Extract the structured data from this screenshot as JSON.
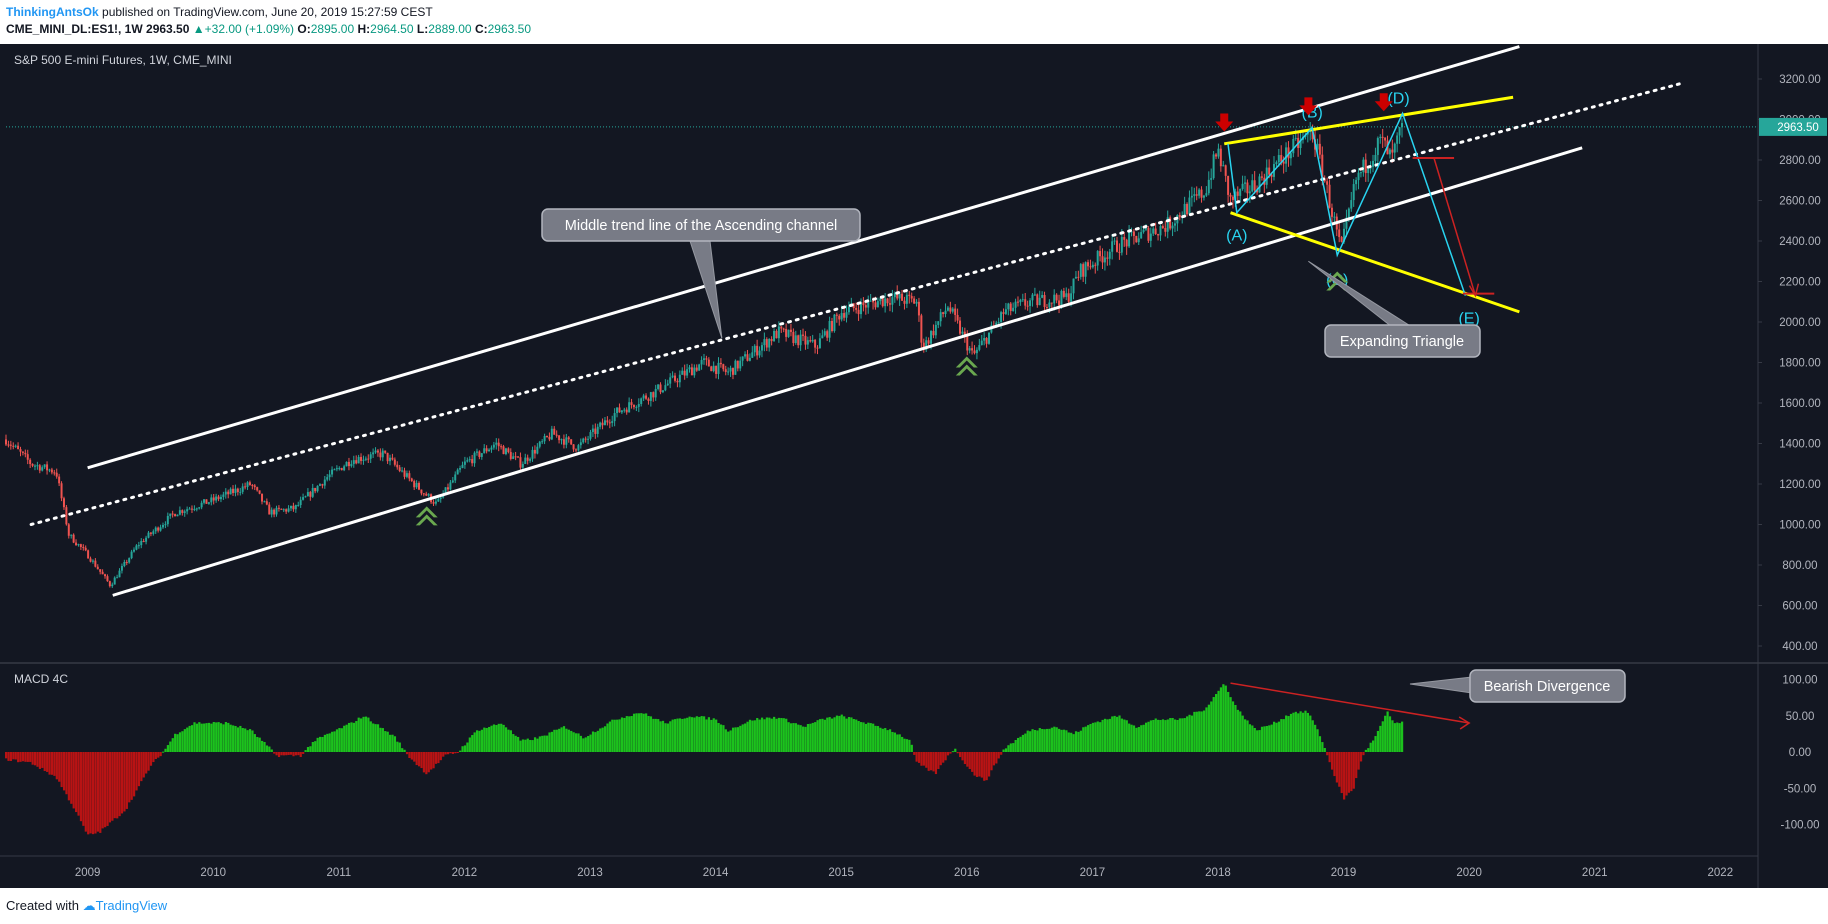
{
  "header": {
    "author": "ThinkingAntsOk",
    "published": "published on TradingView.com, June 20, 2019 15:27:59 CEST",
    "symbol": "CME_MINI_DL:ES1!, 1W",
    "last": "2963.50",
    "change": "+32.00 (+1.09%)",
    "o_label": "O:",
    "o": "2895.00",
    "h_label": "H:",
    "h": "2964.50",
    "l_label": "L:",
    "l": "2889.00",
    "c_label": "C:",
    "c": "2963.50"
  },
  "footer": {
    "created": "Created with",
    "brand": "TradingView"
  },
  "colors": {
    "background": "#131722",
    "up": "#26a69a",
    "down": "#ef5350",
    "channel": "#ffffff",
    "triangle": "#ffff00",
    "wave": "#29d4f0",
    "macd_up": "#1dd11d",
    "macd_down": "#c81414",
    "arrow_up": "#6aa84f",
    "arrow_down": "#cc0000",
    "price_tag": "#26a69a"
  },
  "chart_data": [
    {
      "type": "candlestick",
      "title": "S&P 500 E-mini Futures, 1W, CME_MINI",
      "ylim": [
        300,
        3350
      ],
      "yticks": [
        400,
        600,
        800,
        1000,
        1200,
        1400,
        1600,
        1800,
        2000,
        2200,
        2400,
        2600,
        2800,
        3000,
        3200
      ],
      "ytick_labels": [
        "400.00",
        "600.00",
        "800.00",
        "1000.00",
        "1200.00",
        "1400.00",
        "1600.00",
        "1800.00",
        "2000.00",
        "2200.00",
        "2400.00",
        "2600.00",
        "2800.00",
        "3000.00",
        "3200.00"
      ],
      "xticks": [
        "2009",
        "2010",
        "2011",
        "2012",
        "2013",
        "2014",
        "2015",
        "2016",
        "2017",
        "2018",
        "2019",
        "2020",
        "2021",
        "2022"
      ],
      "xlim": [
        2008.35,
        2022.3
      ],
      "last_price": 2963.5,
      "last_price_label": "2963.50",
      "price_path": [
        [
          2008.35,
          1420
        ],
        [
          2008.55,
          1300
        ],
        [
          2008.75,
          1260
        ],
        [
          2008.85,
          950
        ],
        [
          2009.0,
          850
        ],
        [
          2009.18,
          700
        ],
        [
          2009.4,
          900
        ],
        [
          2009.7,
          1060
        ],
        [
          2010.0,
          1120
        ],
        [
          2010.3,
          1200
        ],
        [
          2010.45,
          1060
        ],
        [
          2010.65,
          1080
        ],
        [
          2010.9,
          1230
        ],
        [
          2011.1,
          1320
        ],
        [
          2011.35,
          1350
        ],
        [
          2011.6,
          1200
        ],
        [
          2011.78,
          1100
        ],
        [
          2012.0,
          1300
        ],
        [
          2012.25,
          1400
        ],
        [
          2012.45,
          1300
        ],
        [
          2012.7,
          1450
        ],
        [
          2012.9,
          1380
        ],
        [
          2013.2,
          1550
        ],
        [
          2013.5,
          1650
        ],
        [
          2013.9,
          1800
        ],
        [
          2014.1,
          1750
        ],
        [
          2014.5,
          1950
        ],
        [
          2014.8,
          1880
        ],
        [
          2015.0,
          2050
        ],
        [
          2015.4,
          2120
        ],
        [
          2015.6,
          2100
        ],
        [
          2015.65,
          1870
        ],
        [
          2015.85,
          2080
        ],
        [
          2016.05,
          1830
        ],
        [
          2016.3,
          2050
        ],
        [
          2016.5,
          2100
        ],
        [
          2016.8,
          2120
        ],
        [
          2016.9,
          2250
        ],
        [
          2017.2,
          2380
        ],
        [
          2017.6,
          2480
        ],
        [
          2017.9,
          2650
        ],
        [
          2018.0,
          2850
        ],
        [
          2018.1,
          2600
        ],
        [
          2018.3,
          2680
        ],
        [
          2018.5,
          2800
        ],
        [
          2018.75,
          2940
        ],
        [
          2018.85,
          2700
        ],
        [
          2018.98,
          2350
        ],
        [
          2019.1,
          2700
        ],
        [
          2019.3,
          2900
        ],
        [
          2019.38,
          2800
        ],
        [
          2019.47,
          2963
        ]
      ],
      "channel": {
        "upper": [
          [
            2009.0,
            1280
          ],
          [
            2020.4,
            3360
          ]
        ],
        "middle": [
          [
            2008.55,
            1000
          ],
          [
            2021.7,
            3180
          ]
        ],
        "lower": [
          [
            2009.2,
            650
          ],
          [
            2020.9,
            2860
          ]
        ]
      },
      "triangle": {
        "top": [
          [
            2018.05,
            2880
          ],
          [
            2020.35,
            3110
          ]
        ],
        "bottom": [
          [
            2018.1,
            2540
          ],
          [
            2020.4,
            2050
          ]
        ]
      },
      "waves": {
        "labels": [
          "(A)",
          "(B)",
          "(C)",
          "(D)",
          "(E)"
        ],
        "points": [
          [
            2018.08,
            2880
          ],
          [
            2018.15,
            2540
          ],
          [
            2018.75,
            2960
          ],
          [
            2018.95,
            2330
          ],
          [
            2019.47,
            3030
          ],
          [
            2019.97,
            2130
          ]
        ]
      },
      "red_arrows_down": [
        [
          2018.05,
          2980
        ],
        [
          2018.72,
          3060
        ],
        [
          2019.32,
          3080
        ]
      ],
      "green_arrows_up": [
        [
          2011.7,
          1040
        ],
        [
          2016.0,
          1780
        ],
        [
          2018.95,
          2200
        ]
      ],
      "target": {
        "t_bar": [
          [
            2019.55,
            2810
          ],
          [
            2019.88,
            2810
          ]
        ],
        "arrow": [
          [
            2019.72,
            2810
          ],
          [
            2020.05,
            2130
          ]
        ],
        "e_bar": [
          [
            2019.95,
            2140
          ],
          [
            2020.2,
            2140
          ]
        ]
      },
      "annotations": [
        {
          "text": "Middle trend line of the Ascending channel"
        },
        {
          "text": "Expanding Triangle"
        }
      ]
    },
    {
      "type": "bar",
      "title": "MACD 4C",
      "ylim": [
        -150,
        120
      ],
      "yticks": [
        100,
        50,
        0,
        -50,
        -100
      ],
      "ytick_labels": [
        "100.00",
        "50.00",
        "0.00",
        "-50.00",
        "-100.00"
      ],
      "histogram_path": [
        [
          2008.35,
          -10
        ],
        [
          2008.55,
          -15
        ],
        [
          2008.75,
          -35
        ],
        [
          2008.9,
          -80
        ],
        [
          2009.0,
          -115
        ],
        [
          2009.1,
          -110
        ],
        [
          2009.3,
          -80
        ],
        [
          2009.5,
          -20
        ],
        [
          2009.6,
          0
        ],
        [
          2009.7,
          25
        ],
        [
          2009.85,
          40
        ],
        [
          2010.1,
          40
        ],
        [
          2010.3,
          30
        ],
        [
          2010.45,
          5
        ],
        [
          2010.5,
          -5
        ],
        [
          2010.7,
          -5
        ],
        [
          2010.8,
          15
        ],
        [
          2011.1,
          40
        ],
        [
          2011.2,
          50
        ],
        [
          2011.45,
          20
        ],
        [
          2011.55,
          -5
        ],
        [
          2011.7,
          -30
        ],
        [
          2011.85,
          -5
        ],
        [
          2011.95,
          0
        ],
        [
          2012.1,
          30
        ],
        [
          2012.3,
          40
        ],
        [
          2012.45,
          15
        ],
        [
          2012.6,
          20
        ],
        [
          2012.8,
          35
        ],
        [
          2012.95,
          20
        ],
        [
          2013.2,
          45
        ],
        [
          2013.4,
          55
        ],
        [
          2013.6,
          40
        ],
        [
          2013.8,
          50
        ],
        [
          2014.0,
          45
        ],
        [
          2014.1,
          30
        ],
        [
          2014.3,
          45
        ],
        [
          2014.5,
          48
        ],
        [
          2014.7,
          35
        ],
        [
          2014.85,
          45
        ],
        [
          2015.0,
          50
        ],
        [
          2015.2,
          40
        ],
        [
          2015.4,
          30
        ],
        [
          2015.55,
          15
        ],
        [
          2015.6,
          -15
        ],
        [
          2015.75,
          -30
        ],
        [
          2015.85,
          -5
        ],
        [
          2015.9,
          5
        ],
        [
          2016.05,
          -30
        ],
        [
          2016.15,
          -40
        ],
        [
          2016.3,
          5
        ],
        [
          2016.5,
          30
        ],
        [
          2016.7,
          35
        ],
        [
          2016.85,
          25
        ],
        [
          2017.0,
          40
        ],
        [
          2017.2,
          50
        ],
        [
          2017.35,
          35
        ],
        [
          2017.5,
          45
        ],
        [
          2017.7,
          45
        ],
        [
          2017.9,
          60
        ],
        [
          2018.05,
          95
        ],
        [
          2018.15,
          60
        ],
        [
          2018.3,
          30
        ],
        [
          2018.45,
          40
        ],
        [
          2018.6,
          55
        ],
        [
          2018.72,
          55
        ],
        [
          2018.82,
          20
        ],
        [
          2018.9,
          -20
        ],
        [
          2019.0,
          -65
        ],
        [
          2019.08,
          -50
        ],
        [
          2019.15,
          -5
        ],
        [
          2019.25,
          20
        ],
        [
          2019.35,
          55
        ],
        [
          2019.4,
          40
        ],
        [
          2019.47,
          40
        ]
      ],
      "divergence_line": [
        [
          2018.1,
          95
        ],
        [
          2020.0,
          40
        ]
      ],
      "annotations": [
        {
          "text": "Bearish Divergence"
        }
      ]
    }
  ]
}
